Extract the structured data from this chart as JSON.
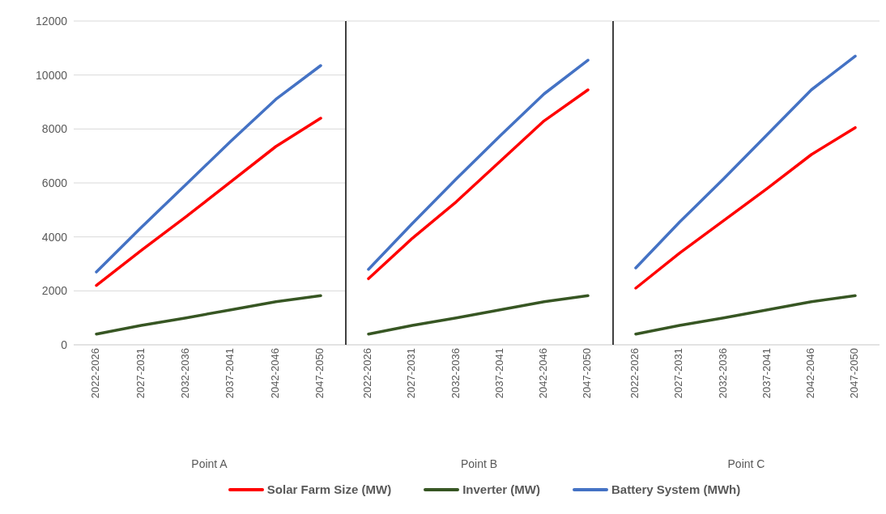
{
  "chart_data": [
    {
      "type": "line",
      "xlabel": "Point A",
      "categories": [
        "2022-2026",
        "2027-2031",
        "2032-2036",
        "2037-2041",
        "2042-2046",
        "2047-2050"
      ],
      "ylim": [
        0,
        12000
      ],
      "yticks": [
        0,
        2000,
        4000,
        6000,
        8000,
        10000,
        12000
      ],
      "grid": "y",
      "legend": "bottom",
      "marker": "none",
      "line_style": "solid",
      "series": [
        {
          "name": "Solar Farm Size (MW)",
          "color": "#ff0000",
          "values": [
            2200,
            3500,
            4750,
            6050,
            7350,
            8400
          ]
        },
        {
          "name": "Inverter (MW)",
          "color": "#375623",
          "values": [
            400,
            720,
            1000,
            1300,
            1600,
            1820
          ]
        },
        {
          "name": "Battery System (MWh)",
          "color": "#4472c4",
          "values": [
            2700,
            4350,
            5950,
            7550,
            9100,
            10350
          ]
        }
      ]
    },
    {
      "type": "line",
      "xlabel": "Point B",
      "categories": [
        "2022-2026",
        "2027-2031",
        "2032-2036",
        "2037-2041",
        "2042-2046",
        "2047-2050"
      ],
      "ylim": [
        0,
        12000
      ],
      "yticks": [
        0,
        2000,
        4000,
        6000,
        8000,
        10000,
        12000
      ],
      "grid": "y",
      "tick_labels": "x",
      "marker": "none",
      "line_style": "solid",
      "series": [
        {
          "color": "#ff0000",
          "values": [
            2450,
            3950,
            5300,
            6800,
            8300,
            9450
          ]
        },
        {
          "color": "#375623",
          "values": [
            400,
            720,
            1000,
            1300,
            1600,
            1820
          ]
        },
        {
          "color": "#4472c4",
          "values": [
            2800,
            4500,
            6150,
            7750,
            9300,
            10550
          ]
        }
      ]
    },
    {
      "type": "line",
      "xlabel": "Point C",
      "categories": [
        "2022-2026",
        "2027-2031",
        "2032-2036",
        "2037-2041",
        "2042-2046",
        "2047-2050"
      ],
      "ylim": [
        0,
        12000
      ],
      "yticks": [
        0,
        2000,
        4000,
        6000,
        8000,
        10000,
        12000
      ],
      "grid": "y",
      "tick_labels": "x",
      "marker": "none",
      "line_style": "solid",
      "series": [
        {
          "color": "#ff0000",
          "values": [
            2100,
            3400,
            4600,
            5800,
            7050,
            8050
          ]
        },
        {
          "color": "#375623",
          "values": [
            400,
            720,
            1000,
            1300,
            1600,
            1820
          ]
        },
        {
          "color": "#4472c4",
          "values": [
            2850,
            4550,
            6150,
            7800,
            9450,
            10700
          ]
        }
      ]
    }
  ]
}
